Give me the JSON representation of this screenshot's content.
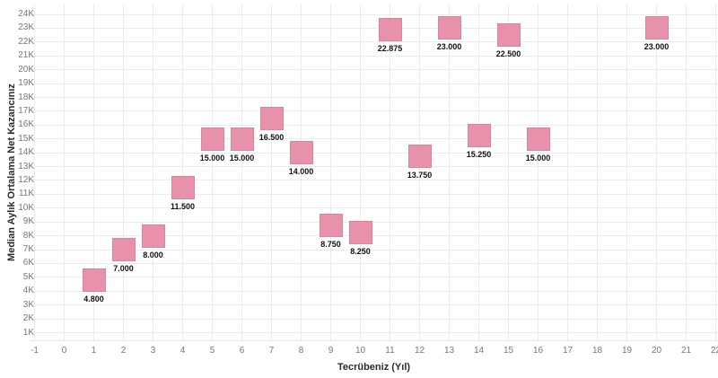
{
  "chart_data": {
    "type": "scatter",
    "marker": "square",
    "title": "",
    "xlabel": "Tecrübeniz (Yıl)",
    "ylabel": "Median Aylık Ortalama Net Kazancınız",
    "x": [
      1,
      2,
      3,
      4,
      5,
      6,
      7,
      8,
      9,
      10,
      11,
      12,
      13,
      14,
      15,
      16,
      20
    ],
    "y": [
      4800,
      7000,
      8000,
      11500,
      15000,
      15000,
      16500,
      14000,
      8750,
      8250,
      22875,
      13750,
      23000,
      15250,
      22500,
      15000,
      23000
    ],
    "point_labels": [
      "4.800",
      "7.000",
      "8.000",
      "11.500",
      "15.000",
      "15.000",
      "16.500",
      "14.000",
      "8.750",
      "8.250",
      "22.875",
      "13.750",
      "23.000",
      "15.250",
      "22.500",
      "15.000",
      "23.000"
    ],
    "xticks": [
      -1,
      0,
      1,
      2,
      3,
      4,
      5,
      6,
      7,
      8,
      9,
      10,
      11,
      12,
      13,
      14,
      15,
      16,
      17,
      18,
      19,
      20,
      21,
      22
    ],
    "yticks": [
      {
        "value": 1000,
        "label": "1K"
      },
      {
        "value": 2000,
        "label": "2K"
      },
      {
        "value": 3000,
        "label": "3K"
      },
      {
        "value": 4000,
        "label": "4K"
      },
      {
        "value": 5000,
        "label": "5K"
      },
      {
        "value": 6000,
        "label": "6K"
      },
      {
        "value": 7000,
        "label": "7K"
      },
      {
        "value": 8000,
        "label": "8K"
      },
      {
        "value": 9000,
        "label": "9K"
      },
      {
        "value": 10000,
        "label": "10K"
      },
      {
        "value": 11000,
        "label": "11K"
      },
      {
        "value": 12000,
        "label": "12K"
      },
      {
        "value": 13000,
        "label": "13K"
      },
      {
        "value": 14000,
        "label": "14K"
      },
      {
        "value": 15000,
        "label": "15K"
      },
      {
        "value": 16000,
        "label": "16K"
      },
      {
        "value": 17000,
        "label": "17K"
      },
      {
        "value": 18000,
        "label": "18K"
      },
      {
        "value": 19000,
        "label": "19K"
      },
      {
        "value": 20000,
        "label": "20K"
      },
      {
        "value": 21000,
        "label": "21K"
      },
      {
        "value": 22000,
        "label": "22K"
      },
      {
        "value": 23000,
        "label": "23K"
      },
      {
        "value": 24000,
        "label": "24K"
      }
    ],
    "xlim": [
      -1.17,
      22.08
    ],
    "ylim": [
      450,
      24700
    ],
    "grid": true,
    "legend": "none",
    "marker_color": "#e791aa",
    "mark_label_color": "#111111",
    "tick_color": "#787878",
    "axis_title_color": "#2b2b2b",
    "grid_color": "#ececec",
    "background_color": "#ffffff"
  }
}
